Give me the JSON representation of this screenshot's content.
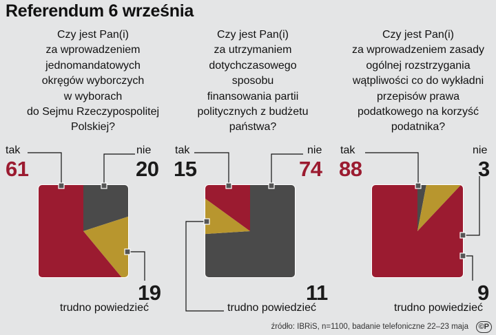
{
  "title": "Referendum 6 września",
  "source": "źródło: IBRiS, n=1100, badanie telefoniczne 22–23 maja",
  "cc_mark": "©P",
  "colors": {
    "tak": "#9b1b30",
    "nie": "#4a4a4a",
    "trudno": "#b8962e",
    "background": "#e4e5e6"
  },
  "labels": {
    "tak": "tak",
    "nie": "nie",
    "trudno": "trudno powiedzieć"
  },
  "questions": [
    {
      "lines": [
        "Czy jest Pan(i)",
        "za wprowadzeniem",
        "jednomandatowych",
        "okręgów wyborczych",
        "w wyborach",
        "do Sejmu Rzeczypospolitej",
        "Polskiej?"
      ]
    },
    {
      "lines": [
        "Czy jest Pan(i)",
        "za utrzymaniem",
        "dotychczasowego",
        "sposobu",
        "finansowania partii",
        "politycznych z budżetu",
        "państwa?"
      ]
    },
    {
      "lines": [
        "Czy jest Pan(i)",
        "za wprowadzeniem zasady",
        "ogólnej rozstrzygania",
        "wątpliwości co do wykładni",
        "przepisów prawa",
        "podatkowego na korzyść",
        "podatnika?"
      ]
    }
  ],
  "chart_data": [
    {
      "type": "pie",
      "categories": [
        "tak",
        "nie",
        "trudno powiedzieć"
      ],
      "values": [
        61,
        20,
        19
      ],
      "value_labels": [
        "61",
        "20",
        "19"
      ],
      "highlight": "tak"
    },
    {
      "type": "pie",
      "categories": [
        "tak",
        "nie",
        "trudno powiedzieć"
      ],
      "values": [
        15,
        74,
        11
      ],
      "value_labels": [
        "15",
        "74",
        "11"
      ],
      "highlight": "nie"
    },
    {
      "type": "pie",
      "categories": [
        "tak",
        "nie",
        "trudno powiedzieć"
      ],
      "values": [
        88,
        3,
        9
      ],
      "value_labels": [
        "88",
        "3",
        "9"
      ],
      "highlight": "tak"
    }
  ]
}
